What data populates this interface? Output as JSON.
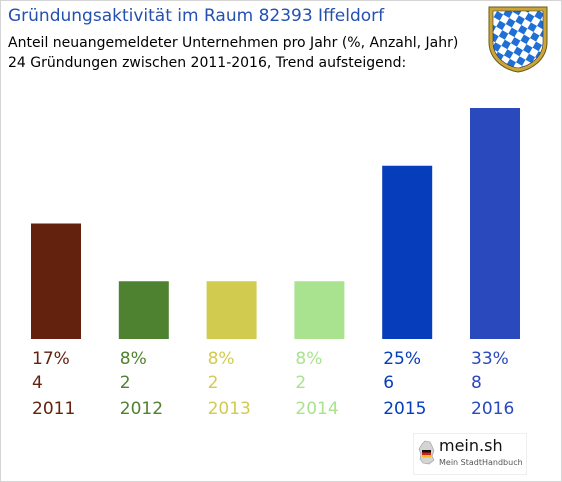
{
  "header": {
    "title": "Gründungsaktivität im Raum 82393 Iffeldorf",
    "subtitle_line1": "Anteil neuangemeldeter Unternehmen pro Jahr (%, Anzahl, Jahr)",
    "subtitle_line2": "24 Gründungen zwischen 2011-2016, Trend aufsteigend:"
  },
  "logo": {
    "name": "mein.sh",
    "tagline": "Mein StadtHandbuch",
    "icon": "germany-map-icon"
  },
  "crest_icon": "bavarian-coat-of-arms-icon",
  "chart_data": {
    "type": "bar",
    "title": "Gründungsaktivität im Raum 82393 Iffeldorf",
    "xlabel": "",
    "ylabel": "",
    "categories": [
      "2011",
      "2012",
      "2013",
      "2014",
      "2015",
      "2016"
    ],
    "values": [
      4,
      2,
      2,
      2,
      6,
      8
    ],
    "percent_labels": [
      "17%",
      "8%",
      "8%",
      "8%",
      "25%",
      "33%"
    ],
    "count_labels": [
      "4",
      "2",
      "2",
      "2",
      "6",
      "8"
    ],
    "colors": [
      "#62220e",
      "#4e8130",
      "#d1cb4f",
      "#a9e38f",
      "#063dba",
      "#2a49bd"
    ],
    "ylim": [
      0,
      8
    ],
    "grid": false,
    "legend": "none"
  }
}
